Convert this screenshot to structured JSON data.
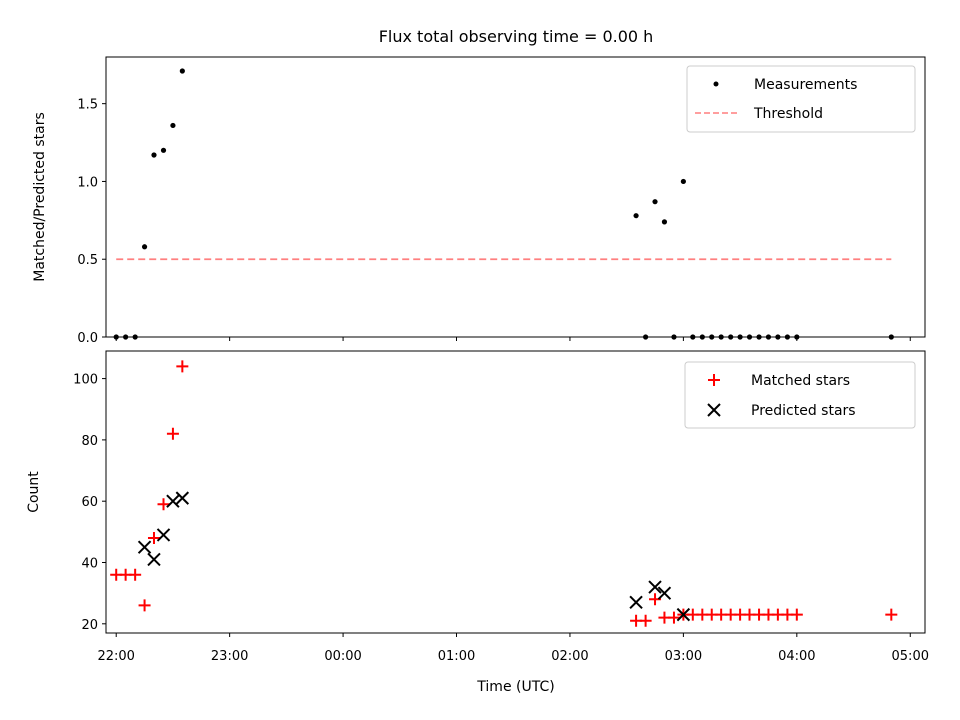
{
  "chart_data": [
    {
      "type": "scatter",
      "title": "Flux total observing time = 0.00 h",
      "xlabel": "",
      "ylabel": "Matched/Predicted stars",
      "xlim": [
        21.91,
        29.13
      ],
      "ylim": [
        0,
        1.8
      ],
      "yticks": [
        0.0,
        0.5,
        1.0,
        1.5
      ],
      "ytick_labels": [
        "0.0",
        "0.5",
        "1.0",
        "1.5"
      ],
      "xticks": [
        22,
        23,
        24,
        25,
        26,
        27,
        28,
        29
      ],
      "legend": {
        "placement": "top-right",
        "entries": [
          "Measurements",
          "Threshold"
        ]
      },
      "series": [
        {
          "name": "Measurements",
          "color": "#000000",
          "marker": "dot",
          "x": [
            22.0,
            22.083,
            22.167,
            22.25,
            22.333,
            22.417,
            22.5,
            22.583,
            26.583,
            26.667,
            26.75,
            26.833,
            26.917,
            27.0,
            27.083,
            27.167,
            27.25,
            27.333,
            27.417,
            27.5,
            27.583,
            27.667,
            27.75,
            27.833,
            27.917,
            28.0,
            28.833
          ],
          "y": [
            0,
            0,
            0,
            0.58,
            1.17,
            1.2,
            1.36,
            1.71,
            0.78,
            0,
            0.87,
            0.74,
            0,
            1.0,
            0,
            0,
            0,
            0,
            0,
            0,
            0,
            0,
            0,
            0,
            0,
            0,
            0
          ]
        },
        {
          "name": "Threshold",
          "color": "#ff7f7f",
          "style": "dashed",
          "x": [
            22.0,
            28.833
          ],
          "y": [
            0.5,
            0.5
          ]
        }
      ]
    },
    {
      "type": "scatter",
      "xlabel": "Time (UTC)",
      "ylabel": "Count",
      "xlim": [
        21.91,
        29.13
      ],
      "ylim": [
        17,
        109
      ],
      "yticks": [
        20,
        40,
        60,
        80,
        100
      ],
      "ytick_labels": [
        "20",
        "40",
        "60",
        "80",
        "100"
      ],
      "xticks": [
        22,
        23,
        24,
        25,
        26,
        27,
        28,
        29
      ],
      "xtick_labels": [
        "22:00",
        "23:00",
        "00:00",
        "01:00",
        "02:00",
        "03:00",
        "04:00",
        "05:00"
      ],
      "legend": {
        "placement": "top-right",
        "entries": [
          "Matched stars",
          "Predicted stars"
        ]
      },
      "series": [
        {
          "name": "Matched stars",
          "color": "#ff0000",
          "marker": "plus",
          "x": [
            22.0,
            22.083,
            22.167,
            22.25,
            22.333,
            22.417,
            22.5,
            22.583,
            26.583,
            26.667,
            26.75,
            26.833,
            26.917,
            27.0,
            27.083,
            27.167,
            27.25,
            27.333,
            27.417,
            27.5,
            27.583,
            27.667,
            27.75,
            27.833,
            27.917,
            28.0,
            28.833
          ],
          "y": [
            36,
            36,
            36,
            26,
            48,
            59,
            82,
            104,
            21,
            21,
            28,
            22,
            22,
            23,
            23,
            23,
            23,
            23,
            23,
            23,
            23,
            23,
            23,
            23,
            23,
            23,
            23
          ]
        },
        {
          "name": "Predicted stars",
          "color": "#000000",
          "marker": "x",
          "x": [
            22.25,
            22.333,
            22.417,
            22.5,
            22.583,
            26.583,
            26.75,
            26.833,
            27.0
          ],
          "y": [
            45,
            41,
            49,
            60,
            61,
            27,
            32,
            30,
            23
          ]
        }
      ]
    }
  ]
}
